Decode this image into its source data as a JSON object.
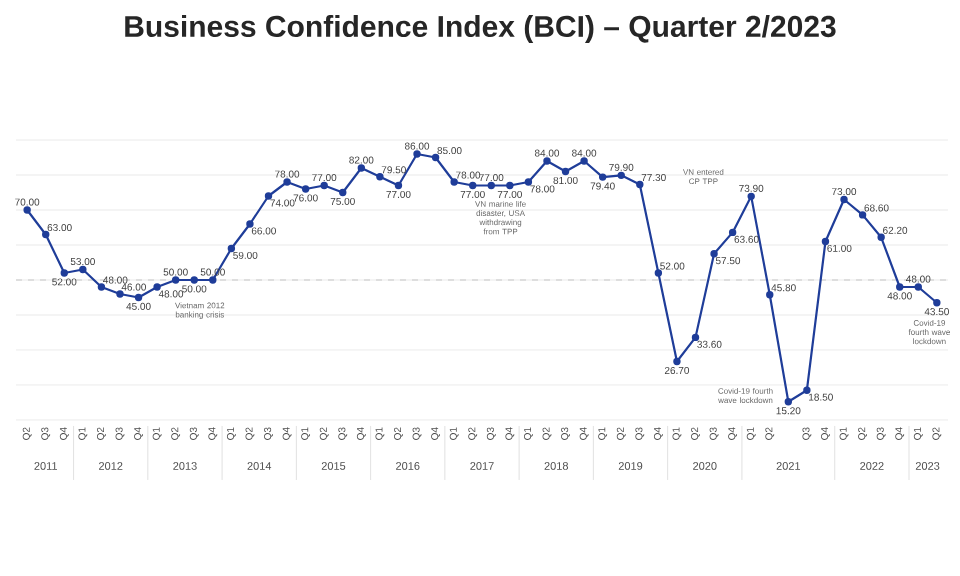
{
  "chart_data": {
    "type": "line",
    "title": "Business Confidence Index (BCI) – Quarter 2/2023",
    "categories": [
      "Q2",
      "Q3",
      "Q4",
      "Q1",
      "Q2",
      "Q3",
      "Q4",
      "Q1",
      "Q2",
      "Q3",
      "Q4",
      "Q1",
      "Q2",
      "Q3",
      "Q4",
      "Q1",
      "Q2",
      "Q3",
      "Q4",
      "Q1",
      "Q2",
      "Q3",
      "Q4",
      "Q1",
      "Q2",
      "Q3",
      "Q4",
      "Q1",
      "Q2",
      "Q3",
      "Q4",
      "Q1",
      "Q2",
      "Q3",
      "Q4",
      "Q1",
      "Q2",
      "Q3",
      "Q4",
      "Q1",
      "Q2",
      null,
      "Q3",
      "Q4",
      "Q1",
      "Q2",
      "Q3",
      "Q4",
      "Q1",
      "Q2"
    ],
    "series": [
      {
        "color": "#1f3d99",
        "values": [
          70,
          63,
          52,
          53,
          48,
          46,
          45,
          48,
          50,
          50,
          50,
          59,
          66,
          74,
          78,
          76,
          77,
          75,
          82,
          79.5,
          77,
          86,
          85,
          78,
          77,
          77,
          77,
          78,
          84,
          81,
          84,
          79.4,
          79.9,
          77.3,
          52,
          26.7,
          33.6,
          57.5,
          63.6,
          73.9,
          45.8,
          15.2,
          18.5,
          61,
          73,
          68.6,
          62.2,
          48,
          48,
          43.5
        ],
        "value_labels": [
          "70.00",
          "63.00",
          "52.00",
          "53.00",
          "48.00",
          "46.00",
          "45.00",
          "48.00",
          "50.00",
          "50.00",
          "50.00",
          "59.00",
          "66.00",
          "74.00",
          "78.00",
          "76.00",
          "77.00",
          "75.00",
          "82.00",
          "79.50",
          "77.00",
          "86.00",
          "85.00",
          "78.00",
          "77.00",
          "77.00",
          "77.00",
          "78.00",
          "84.00",
          "81.00",
          "84.00",
          "79.40",
          "79.90",
          "77.30",
          "52.00",
          "26.70",
          "33.60",
          "57.50",
          "63.60",
          "73.90",
          "45.80",
          "15.20",
          "18.50",
          "61.00",
          "73.00",
          "68.60",
          "62.20",
          "48.00",
          "48.00",
          "43.50"
        ]
      }
    ],
    "annotations": [
      "2011",
      "2012",
      "2013",
      "2014",
      "2015",
      "2016",
      "2017",
      "2018",
      "2019",
      "2020",
      "2021",
      "2022",
      "2023",
      "Vietnam 2012 banking crisis",
      "VN marine life disaster, USA withdrawing from TPP",
      "VN entered CP TPP",
      "Covid-19 fourth wave lockdown",
      "Covid-19 fourth wave lockdown"
    ],
    "ylim": [
      10,
      90
    ],
    "yticks": [
      {
        "value": 10,
        "label": null
      },
      {
        "value": 20,
        "label": null
      },
      {
        "value": 30,
        "label": null
      },
      {
        "value": 40,
        "label": null
      },
      {
        "value": 50,
        "label": null
      },
      {
        "value": 60,
        "label": null
      },
      {
        "value": 70,
        "label": null
      },
      {
        "value": 80,
        "label": null
      },
      {
        "value": 90,
        "label": null
      }
    ],
    "ref_lines": [
      {
        "axis": "y",
        "value": 50,
        "color": "#c8c8c8",
        "line_style": "dashed"
      }
    ],
    "grid": "y",
    "marker": "circle",
    "line_style": "solid",
    "tick_labels": "x"
  }
}
